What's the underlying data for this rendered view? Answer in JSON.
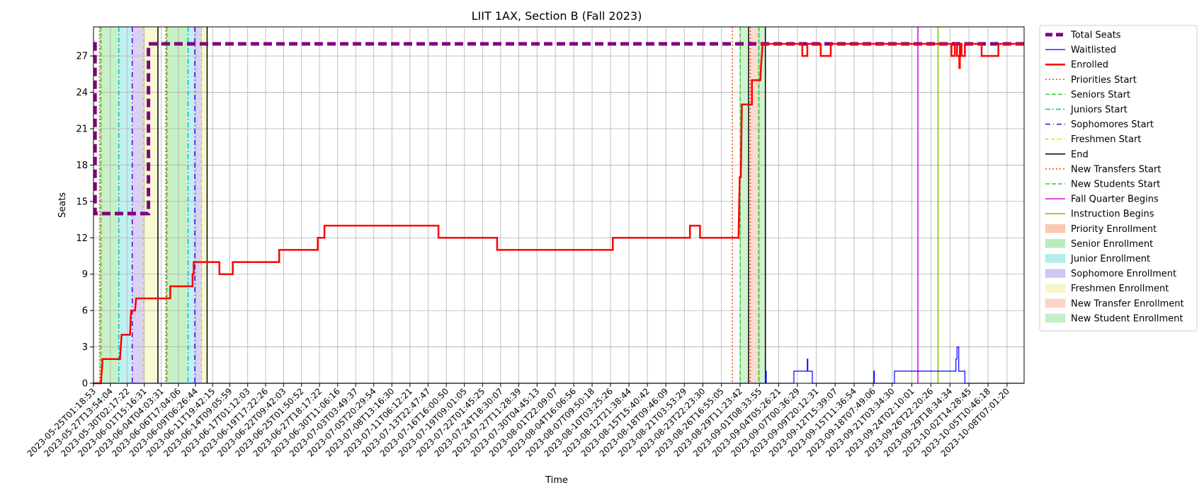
{
  "chart_data": {
    "type": "line",
    "title": "LIIT 1AX, Section B (Fall 2023)",
    "xlabel": "Time",
    "ylabel": "Seats",
    "ylim": [
      0,
      29.4
    ],
    "yticks": [
      0,
      3,
      6,
      9,
      12,
      15,
      18,
      21,
      24,
      27
    ],
    "xlim": [
      "2023-05-25T01:18:53",
      "2023-10-10T20:00:00"
    ],
    "xtick_labels": [
      "2023-05-25T01:18:53",
      "2023-05-27T13:54:04",
      "2023-05-30T02:17:22",
      "2023-06-01T15:16:31",
      "2023-06-04T04:03:31",
      "2023-06-06T17:04:06",
      "2023-06-09T06:26:44",
      "2023-06-11T19:42:15",
      "2023-06-14T09:05:59",
      "2023-06-17T01:12:03",
      "2023-06-19T17:22:26",
      "2023-06-22T09:42:03",
      "2023-06-25T01:50:52",
      "2023-06-27T18:17:22",
      "2023-06-30T11:06:16",
      "2023-07-03T03:49:37",
      "2023-07-05T20:29:54",
      "2023-07-08T13:16:30",
      "2023-07-11T06:12:21",
      "2023-07-13T22:47:47",
      "2023-07-16T16:00:50",
      "2023-07-19T09:01:05",
      "2023-07-22T01:45:25",
      "2023-07-24T18:30:07",
      "2023-07-27T11:28:39",
      "2023-07-30T04:45:13",
      "2023-08-01T22:09:07",
      "2023-08-04T16:06:56",
      "2023-08-07T09:50:18",
      "2023-08-10T03:25:26",
      "2023-08-12T21:38:44",
      "2023-08-15T15:40:42",
      "2023-08-18T09:46:09",
      "2023-08-21T03:53:29",
      "2023-08-23T22:23:30",
      "2023-08-26T16:55:05",
      "2023-08-29T11:23:42",
      "2023-09-01T08:33:55",
      "2023-09-04T05:26:21",
      "2023-09-07T00:36:29",
      "2023-09-09T20:12:31",
      "2023-09-12T15:39:07",
      "2023-09-15T11:36:54",
      "2023-09-18T07:49:06",
      "2023-09-21T03:34:30",
      "2023-09-24T02:10:01",
      "2023-09-26T22:20:26",
      "2023-09-29T18:34:34",
      "2023-10-02T14:28:45",
      "2023-10-05T10:46:18",
      "2023-10-08T07:01:20"
    ],
    "series": [
      {
        "name": "Total Seats",
        "color": "#800080",
        "style": "dashed-thick",
        "points": [
          [
            "2023-05-25T01:18:53",
            28
          ],
          [
            "2023-05-25T07:00:00",
            28
          ],
          [
            "2023-05-25T07:00:00",
            14
          ],
          [
            "2023-06-02T06:00:00",
            14
          ],
          [
            "2023-06-02T06:00:00",
            28
          ],
          [
            "2023-10-10T20:00:00",
            28
          ]
        ]
      },
      {
        "name": "Waitlisted",
        "color": "#0000ff",
        "style": "solid-thin",
        "points": [
          [
            "2023-05-25T01:18:53",
            0
          ],
          [
            "2023-09-02T06:00:00",
            0
          ],
          [
            "2023-09-02T06:00:00",
            1
          ],
          [
            "2023-09-02T09:00:00",
            1
          ],
          [
            "2023-09-02T09:00:00",
            0
          ],
          [
            "2023-09-06T12:00:00",
            0
          ],
          [
            "2023-09-06T12:00:00",
            1
          ],
          [
            "2023-09-08T12:00:00",
            1
          ],
          [
            "2023-09-08T12:00:00",
            2
          ],
          [
            "2023-09-08T14:00:00",
            2
          ],
          [
            "2023-09-08T14:00:00",
            1
          ],
          [
            "2023-09-09T06:00:00",
            1
          ],
          [
            "2023-09-09T06:00:00",
            0
          ],
          [
            "2023-09-18T10:00:00",
            0
          ],
          [
            "2023-09-18T10:00:00",
            1
          ],
          [
            "2023-09-18T12:00:00",
            1
          ],
          [
            "2023-09-18T12:00:00",
            0
          ],
          [
            "2023-09-21T12:00:00",
            0
          ],
          [
            "2023-09-21T12:00:00",
            1
          ],
          [
            "2023-09-25T18:00:00",
            1
          ],
          [
            "2023-09-25T18:00:00",
            1
          ],
          [
            "2023-09-30T16:00:00",
            1
          ],
          [
            "2023-09-30T16:00:00",
            2
          ],
          [
            "2023-09-30T20:00:00",
            2
          ],
          [
            "2023-09-30T20:00:00",
            3
          ],
          [
            "2023-10-01T02:00:00",
            3
          ],
          [
            "2023-10-01T02:00:00",
            1
          ],
          [
            "2023-10-02T00:00:00",
            1
          ],
          [
            "2023-10-02T00:00:00",
            0
          ],
          [
            "2023-10-10T20:00:00",
            0
          ]
        ]
      },
      {
        "name": "Enrolled",
        "color": "#ff0000",
        "style": "solid-thick",
        "points": [
          [
            "2023-05-25T01:18:53",
            0
          ],
          [
            "2023-05-26T04:00:00",
            0
          ],
          [
            "2023-05-26T10:00:00",
            2
          ],
          [
            "2023-05-29T00:00:00",
            2
          ],
          [
            "2023-05-29T06:00:00",
            4
          ],
          [
            "2023-05-30T12:00:00",
            4
          ],
          [
            "2023-05-30T16:00:00",
            6
          ],
          [
            "2023-05-31T06:00:00",
            6
          ],
          [
            "2023-05-31T10:00:00",
            7
          ],
          [
            "2023-06-05T12:00:00",
            7
          ],
          [
            "2023-06-05T12:00:00",
            8
          ],
          [
            "2023-06-08T20:00:00",
            8
          ],
          [
            "2023-06-08T20:00:00",
            9
          ],
          [
            "2023-06-09T00:00:00",
            9
          ],
          [
            "2023-06-09T00:00:00",
            10
          ],
          [
            "2023-06-12T20:00:00",
            10
          ],
          [
            "2023-06-12T20:00:00",
            9
          ],
          [
            "2023-06-14T20:00:00",
            9
          ],
          [
            "2023-06-14T20:00:00",
            10
          ],
          [
            "2023-06-21T18:00:00",
            10
          ],
          [
            "2023-06-21T18:00:00",
            11
          ],
          [
            "2023-06-27T12:00:00",
            11
          ],
          [
            "2023-06-27T12:00:00",
            12
          ],
          [
            "2023-06-28T12:00:00",
            12
          ],
          [
            "2023-06-28T12:00:00",
            13
          ],
          [
            "2023-07-15T12:00:00",
            13
          ],
          [
            "2023-07-15T12:00:00",
            12
          ],
          [
            "2023-07-24T06:00:00",
            12
          ],
          [
            "2023-07-24T06:00:00",
            11
          ],
          [
            "2023-08-10T12:00:00",
            11
          ],
          [
            "2023-08-10T12:00:00",
            12
          ],
          [
            "2023-08-22T00:00:00",
            12
          ],
          [
            "2023-08-22T00:00:00",
            13
          ],
          [
            "2023-08-23T12:00:00",
            13
          ],
          [
            "2023-08-23T12:00:00",
            12
          ],
          [
            "2023-08-29T06:00:00",
            12
          ],
          [
            "2023-08-29T10:00:00",
            17
          ],
          [
            "2023-08-29T14:00:00",
            17
          ],
          [
            "2023-08-29T18:00:00",
            23
          ],
          [
            "2023-08-31T06:00:00",
            23
          ],
          [
            "2023-08-31T06:00:00",
            25
          ],
          [
            "2023-09-01T12:00:00",
            25
          ],
          [
            "2023-09-01T14:00:00",
            26
          ],
          [
            "2023-09-01T20:00:00",
            28
          ],
          [
            "2023-09-07T18:00:00",
            28
          ],
          [
            "2023-09-07T18:00:00",
            27
          ],
          [
            "2023-09-08T12:00:00",
            27
          ],
          [
            "2023-09-08T12:00:00",
            28
          ],
          [
            "2023-09-10T12:00:00",
            28
          ],
          [
            "2023-09-10T12:00:00",
            27
          ],
          [
            "2023-09-12T00:00:00",
            27
          ],
          [
            "2023-09-12T00:00:00",
            28
          ],
          [
            "2023-09-30T00:00:00",
            28
          ],
          [
            "2023-09-30T00:00:00",
            27
          ],
          [
            "2023-09-30T12:00:00",
            27
          ],
          [
            "2023-09-30T12:00:00",
            28
          ],
          [
            "2023-09-30T20:00:00",
            28
          ],
          [
            "2023-09-30T20:00:00",
            27
          ],
          [
            "2023-10-01T04:00:00",
            27
          ],
          [
            "2023-10-01T04:00:00",
            26
          ],
          [
            "2023-10-01T06:00:00",
            26
          ],
          [
            "2023-10-01T06:00:00",
            28
          ],
          [
            "2023-10-01T12:00:00",
            28
          ],
          [
            "2023-10-01T12:00:00",
            27
          ],
          [
            "2023-10-02T00:00:00",
            27
          ],
          [
            "2023-10-02T00:00:00",
            28
          ],
          [
            "2023-10-04T12:00:00",
            28
          ],
          [
            "2023-10-04T12:00:00",
            27
          ],
          [
            "2023-10-07T00:00:00",
            27
          ],
          [
            "2023-10-07T00:00:00",
            28
          ],
          [
            "2023-10-10T20:00:00",
            28
          ]
        ]
      }
    ],
    "event_lines": [
      {
        "name": "Priorities Start",
        "color": "#ff4500",
        "dash": "2,3",
        "dates": [
          "2023-05-25T23:00:00",
          "2023-06-04T20:00:00",
          "2023-08-28T08:00:00"
        ]
      },
      {
        "name": "Seniors Start",
        "color": "#32cd32",
        "dash": "6,3",
        "dates": [
          "2023-05-26T04:00:00",
          "2023-06-05T00:00:00"
        ]
      },
      {
        "name": "Juniors Start",
        "color": "#00bfbf",
        "dash": "7,3,2,3",
        "dates": [
          "2023-05-28T20:00:00",
          "2023-06-08T04:00:00"
        ]
      },
      {
        "name": "Sophomores Start",
        "color": "#4b00e0",
        "dash": "7,4,1,4",
        "dates": [
          "2023-05-30T20:00:00",
          "2023-06-09T04:00:00"
        ]
      },
      {
        "name": "Freshmen Start",
        "color": "#d4d400",
        "dash": "4,2,1,2",
        "dates": [
          "2023-06-01T12:00:00",
          "2023-06-10T04:00:00"
        ]
      },
      {
        "name": "End",
        "color": "#000000",
        "dash": "",
        "dates": [
          "2023-06-03T16:00:00",
          "2023-06-11T00:00:00",
          "2023-08-30T18:00:00",
          "2023-09-02T06:00:00"
        ]
      },
      {
        "name": "New Transfers Start",
        "color": "#ff4500",
        "dash": "2,3",
        "dates": [
          "2023-08-31T00:00:00"
        ]
      },
      {
        "name": "New Students Start",
        "color": "#32cd32",
        "dash": "6,3",
        "dates": [
          "2023-08-29T12:00:00",
          "2023-09-01T06:00:00"
        ]
      },
      {
        "name": "Fall Quarter Begins",
        "color": "#e000e0",
        "dash": "",
        "dates": [
          "2023-09-25T00:00:00"
        ]
      },
      {
        "name": "Instruction Begins",
        "color": "#7fbf00",
        "dash": "",
        "dates": [
          "2023-09-28T00:00:00"
        ]
      }
    ],
    "spans": [
      {
        "name": "Priority Enrollment",
        "color": "#f9c9b6",
        "ranges": [
          [
            "2023-05-25T23:00:00",
            "2023-05-26T04:00:00"
          ],
          [
            "2023-06-04T20:00:00",
            "2023-06-05T00:00:00"
          ]
        ]
      },
      {
        "name": "Senior Enrollment",
        "color": "#b9ecb9",
        "ranges": [
          [
            "2023-05-26T04:00:00",
            "2023-05-28T20:00:00"
          ],
          [
            "2023-06-05T00:00:00",
            "2023-06-08T04:00:00"
          ]
        ]
      },
      {
        "name": "Junior Enrollment",
        "color": "#b3ecec",
        "ranges": [
          [
            "2023-05-28T20:00:00",
            "2023-05-30T20:00:00"
          ],
          [
            "2023-06-08T04:00:00",
            "2023-06-09T04:00:00"
          ]
        ]
      },
      {
        "name": "Sophomore Enrollment",
        "color": "#d2c6f2",
        "ranges": [
          [
            "2023-05-30T20:00:00",
            "2023-06-01T12:00:00"
          ],
          [
            "2023-06-09T04:00:00",
            "2023-06-10T04:00:00"
          ]
        ]
      },
      {
        "name": "Freshmen Enrollment",
        "color": "#f6f6c8",
        "ranges": [
          [
            "2023-06-01T12:00:00",
            "2023-06-03T16:00:00"
          ],
          [
            "2023-06-10T04:00:00",
            "2023-06-11T00:00:00"
          ]
        ]
      },
      {
        "name": "New Transfer Enrollment",
        "color": "#f9d3c4",
        "ranges": [
          [
            "2023-08-31T00:00:00",
            "2023-09-01T06:00:00"
          ]
        ]
      },
      {
        "name": "New Student Enrollment",
        "color": "#c5efc5",
        "ranges": [
          [
            "2023-08-29T12:00:00",
            "2023-08-30T18:00:00"
          ],
          [
            "2023-09-01T06:00:00",
            "2023-09-02T06:00:00"
          ]
        ]
      }
    ],
    "grid": true,
    "legend_position": "outside-right",
    "legend": [
      {
        "label": "Total Seats",
        "kind": "line",
        "color": "#800080",
        "dash": "10,5",
        "width": 5
      },
      {
        "label": "Waitlisted",
        "kind": "line",
        "color": "#0000ff",
        "dash": "",
        "width": 1.2
      },
      {
        "label": "Enrolled",
        "kind": "line",
        "color": "#ff0000",
        "dash": "",
        "width": 2.5
      },
      {
        "label": "Priorities Start",
        "kind": "line",
        "color": "#ff4500",
        "dash": "2,3",
        "width": 1.5
      },
      {
        "label": "Seniors Start",
        "kind": "line",
        "color": "#32cd32",
        "dash": "6,3",
        "width": 1.5
      },
      {
        "label": "Juniors Start",
        "kind": "line",
        "color": "#00bfbf",
        "dash": "7,3,2,3",
        "width": 1.5
      },
      {
        "label": "Sophomores Start",
        "kind": "line",
        "color": "#4b00e0",
        "dash": "7,4,1,4",
        "width": 1.5
      },
      {
        "label": "Freshmen Start",
        "kind": "line",
        "color": "#d4d400",
        "dash": "4,2,1,2",
        "width": 1.5
      },
      {
        "label": "End",
        "kind": "line",
        "color": "#000000",
        "dash": "",
        "width": 1.5
      },
      {
        "label": "New Transfers Start",
        "kind": "line",
        "color": "#ff4500",
        "dash": "2,3",
        "width": 1.5
      },
      {
        "label": "New Students Start",
        "kind": "line",
        "color": "#32cd32",
        "dash": "6,3",
        "width": 1.5
      },
      {
        "label": "Fall Quarter Begins",
        "kind": "line",
        "color": "#e000e0",
        "dash": "",
        "width": 1.5
      },
      {
        "label": "Instruction Begins",
        "kind": "line",
        "color": "#7fbf00",
        "dash": "",
        "width": 1.5
      },
      {
        "label": "Priority Enrollment",
        "kind": "patch",
        "color": "#f9c9b6"
      },
      {
        "label": "Senior Enrollment",
        "kind": "patch",
        "color": "#b9ecb9"
      },
      {
        "label": "Junior Enrollment",
        "kind": "patch",
        "color": "#b3ecec"
      },
      {
        "label": "Sophomore Enrollment",
        "kind": "patch",
        "color": "#d2c6f2"
      },
      {
        "label": "Freshmen Enrollment",
        "kind": "patch",
        "color": "#f6f6c8"
      },
      {
        "label": "New Transfer Enrollment",
        "kind": "patch",
        "color": "#f9d3c4"
      },
      {
        "label": "New Student Enrollment",
        "kind": "patch",
        "color": "#c5efc5"
      }
    ]
  }
}
